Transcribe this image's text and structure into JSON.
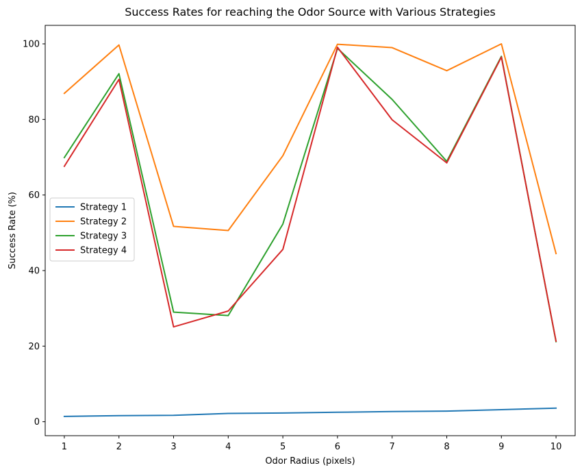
{
  "chart_data": {
    "type": "line",
    "title": "Success Rates for reaching the Odor Source with Various Strategies",
    "xlabel": "Odor Radius (pixels)",
    "ylabel": "Success Rate (%)",
    "x": [
      1,
      2,
      3,
      4,
      5,
      6,
      7,
      8,
      9,
      10
    ],
    "xlim": [
      0.65,
      10.35
    ],
    "ylim": [
      -3.7,
      104.9
    ],
    "xticks": [
      1,
      2,
      3,
      4,
      5,
      6,
      7,
      8,
      9,
      10
    ],
    "yticks": [
      0,
      20,
      40,
      60,
      80,
      100
    ],
    "grid": false,
    "legend_position": "center-left",
    "series": [
      {
        "name": "Strategy 1",
        "color": "#1f77b4",
        "values": [
          1.4,
          1.6,
          1.7,
          2.2,
          2.3,
          2.5,
          2.7,
          2.8,
          3.2,
          3.6
        ]
      },
      {
        "name": "Strategy 2",
        "color": "#ff7f0e",
        "values": [
          86.9,
          99.7,
          51.7,
          50.6,
          70.4,
          99.9,
          99.0,
          92.9,
          100.0,
          44.5
        ]
      },
      {
        "name": "Strategy 3",
        "color": "#2ca02c",
        "values": [
          69.9,
          92.1,
          29.0,
          28.1,
          52.3,
          98.8,
          85.3,
          68.9,
          96.7,
          21.2
        ]
      },
      {
        "name": "Strategy 4",
        "color": "#d62728",
        "values": [
          67.6,
          90.6,
          25.1,
          29.3,
          45.6,
          99.1,
          79.9,
          68.5,
          96.5,
          21.3
        ]
      }
    ]
  }
}
